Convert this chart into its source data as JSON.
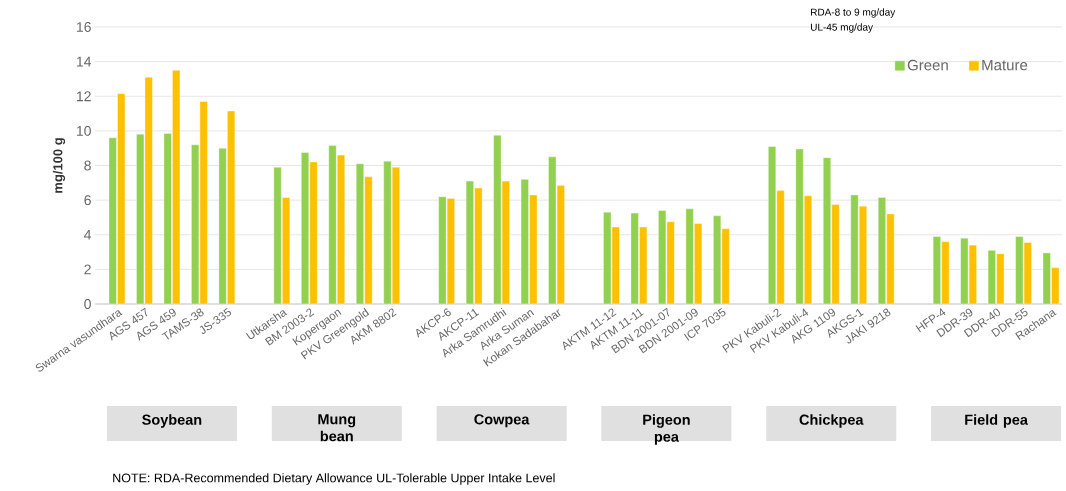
{
  "chart_data": {
    "type": "bar",
    "ylabel": "mg/100 g",
    "categories": [
      "Swarna vasundhara",
      "AGS 457",
      "AGS 459",
      "TAMS-38",
      "JS-335",
      null,
      "Utkarsha",
      "BM 2003-2",
      "Kopergaon",
      "PKV Greengold",
      "AKM 8802",
      null,
      "AKCP-6",
      "AKCP-11",
      "Arka Samrudhi",
      "Arka Suman",
      "Kokan Sadabahar",
      null,
      "AKTM 11-12",
      "AKTM 11-11",
      "BDN 2001-07",
      "BDN 2001-09",
      "ICP 7035",
      null,
      "PKV Kabuli-2",
      "PKV Kabuli-4",
      "AKG 1109",
      "AKGS-1",
      "JAKI 9218",
      null,
      "HFP-4",
      "DDR-39",
      "DDR-40",
      "DDR-55",
      "Rachana"
    ],
    "series": [
      {
        "name": "Green",
        "color": "#92d050",
        "values": [
          9.6,
          9.8,
          9.85,
          9.2,
          9.0,
          null,
          7.9,
          8.75,
          9.15,
          8.1,
          8.25,
          null,
          6.2,
          7.1,
          9.75,
          7.2,
          8.5,
          null,
          5.3,
          5.25,
          5.4,
          5.5,
          5.1,
          null,
          9.1,
          8.95,
          8.45,
          6.3,
          6.15,
          null,
          3.9,
          3.8,
          3.1,
          3.9,
          2.95
        ]
      },
      {
        "name": "Mature",
        "color": "#ffc000",
        "values": [
          12.15,
          13.1,
          13.5,
          11.7,
          11.15,
          null,
          6.15,
          8.2,
          8.6,
          7.35,
          7.9,
          null,
          6.1,
          6.7,
          7.1,
          6.3,
          6.85,
          null,
          4.45,
          4.45,
          4.75,
          4.65,
          4.35,
          null,
          6.55,
          6.25,
          5.75,
          5.65,
          5.2,
          null,
          3.6,
          3.4,
          2.9,
          3.55,
          2.1
        ]
      }
    ],
    "ylim": [
      0,
      16
    ],
    "yticks": [
      0,
      2,
      4,
      6,
      8,
      10,
      12,
      14,
      16
    ],
    "grid": "y",
    "legend": "top right",
    "annotations": [
      "RDA-8 to 9 mg/day",
      "UL-45 mg/day",
      "Soybean",
      "Mung bean",
      "Cowpea",
      "Pigeon pea",
      "Chickpea",
      "Field pea",
      "NOTE: RDA-Recommended Dietary Allowance UL-Tolerable Upper Intake Level"
    ]
  }
}
